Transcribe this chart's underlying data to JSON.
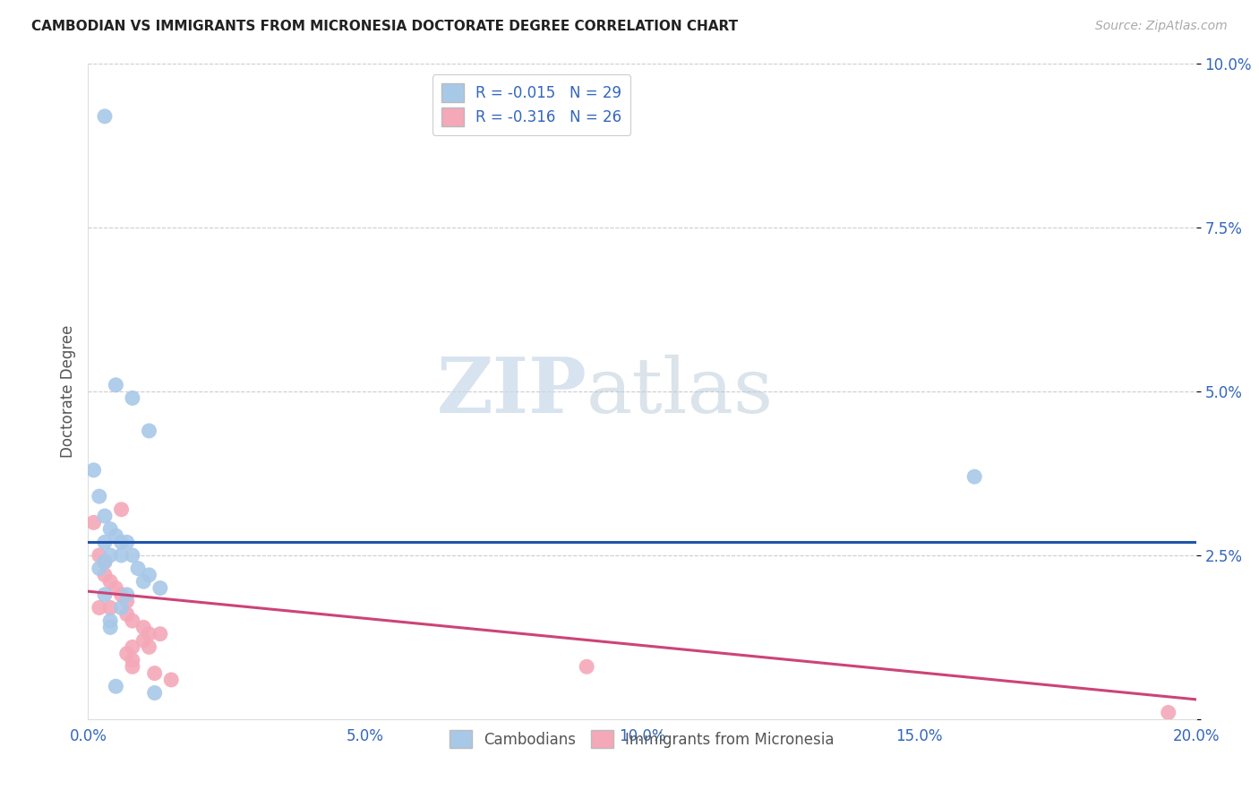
{
  "title": "CAMBODIAN VS IMMIGRANTS FROM MICRONESIA DOCTORATE DEGREE CORRELATION CHART",
  "source": "Source: ZipAtlas.com",
  "ylabel": "Doctorate Degree",
  "watermark_zip": "ZIP",
  "watermark_atlas": "atlas",
  "xlim": [
    0.0,
    0.2
  ],
  "ylim": [
    0.0,
    0.1
  ],
  "xticks": [
    0.0,
    0.05,
    0.1,
    0.15,
    0.2
  ],
  "yticks": [
    0.0,
    0.025,
    0.05,
    0.075,
    0.1
  ],
  "ytick_labels": [
    "",
    "2.5%",
    "5.0%",
    "7.5%",
    "10.0%"
  ],
  "xtick_labels": [
    "0.0%",
    "5.0%",
    "10.0%",
    "15.0%",
    "20.0%"
  ],
  "legend1_label": "Cambodians",
  "legend2_label": "Immigrants from Micronesia",
  "blue_R": "-0.015",
  "blue_N": 29,
  "pink_R": "-0.316",
  "pink_N": 26,
  "blue_color": "#a8c8e8",
  "pink_color": "#f4a8b8",
  "blue_line_color": "#2255aa",
  "pink_line_color": "#cc4477",
  "blue_line_x0": 0.0,
  "blue_line_y0": 0.027,
  "blue_line_x1": 0.2,
  "blue_line_y1": 0.027,
  "pink_line_x0": 0.0,
  "pink_line_y0": 0.0195,
  "pink_line_x1": 0.2,
  "pink_line_y1": 0.003,
  "blue_points_x": [
    0.003,
    0.005,
    0.008,
    0.011,
    0.001,
    0.002,
    0.003,
    0.004,
    0.005,
    0.006,
    0.007,
    0.003,
    0.004,
    0.006,
    0.008,
    0.003,
    0.002,
    0.009,
    0.011,
    0.01,
    0.013,
    0.003,
    0.007,
    0.006,
    0.004,
    0.004,
    0.16,
    0.005,
    0.012
  ],
  "blue_points_y": [
    0.092,
    0.051,
    0.049,
    0.044,
    0.038,
    0.034,
    0.031,
    0.029,
    0.028,
    0.027,
    0.027,
    0.027,
    0.025,
    0.025,
    0.025,
    0.024,
    0.023,
    0.023,
    0.022,
    0.021,
    0.02,
    0.019,
    0.019,
    0.017,
    0.015,
    0.014,
    0.037,
    0.005,
    0.004
  ],
  "pink_points_x": [
    0.001,
    0.002,
    0.003,
    0.003,
    0.004,
    0.005,
    0.006,
    0.007,
    0.002,
    0.004,
    0.007,
    0.008,
    0.01,
    0.011,
    0.013,
    0.01,
    0.008,
    0.011,
    0.007,
    0.008,
    0.008,
    0.012,
    0.015,
    0.006,
    0.09,
    0.195
  ],
  "pink_points_y": [
    0.03,
    0.025,
    0.024,
    0.022,
    0.021,
    0.02,
    0.019,
    0.018,
    0.017,
    0.017,
    0.016,
    0.015,
    0.014,
    0.013,
    0.013,
    0.012,
    0.011,
    0.011,
    0.01,
    0.009,
    0.008,
    0.007,
    0.006,
    0.032,
    0.008,
    0.001
  ]
}
